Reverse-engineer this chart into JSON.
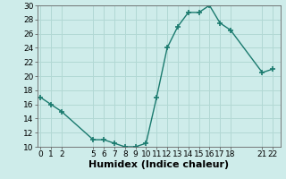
{
  "x": [
    0,
    1,
    2,
    5,
    6,
    7,
    8,
    9,
    10,
    11,
    12,
    13,
    14,
    15,
    16,
    17,
    18,
    21,
    22
  ],
  "y": [
    17,
    16,
    15,
    11,
    11,
    10.5,
    10,
    10,
    10.5,
    17,
    24,
    27,
    29,
    29,
    30,
    27.5,
    26.5,
    20.5,
    21
  ],
  "line_color": "#1a7a6e",
  "marker": "+",
  "marker_size": 4,
  "marker_lw": 1.2,
  "line_width": 1.0,
  "bg_color": "#ceecea",
  "grid_color": "#b2d8d4",
  "xlabel": "Humidex (Indice chaleur)",
  "ylim": [
    10,
    30
  ],
  "yticks": [
    10,
    12,
    14,
    16,
    18,
    20,
    22,
    24,
    26,
    28,
    30
  ],
  "xticks": [
    0,
    1,
    2,
    5,
    6,
    7,
    8,
    9,
    10,
    11,
    12,
    13,
    14,
    15,
    16,
    17,
    18,
    21,
    22
  ],
  "xlim": [
    -0.3,
    22.7
  ],
  "xlabel_fontsize": 8,
  "tick_fontsize": 6.5
}
